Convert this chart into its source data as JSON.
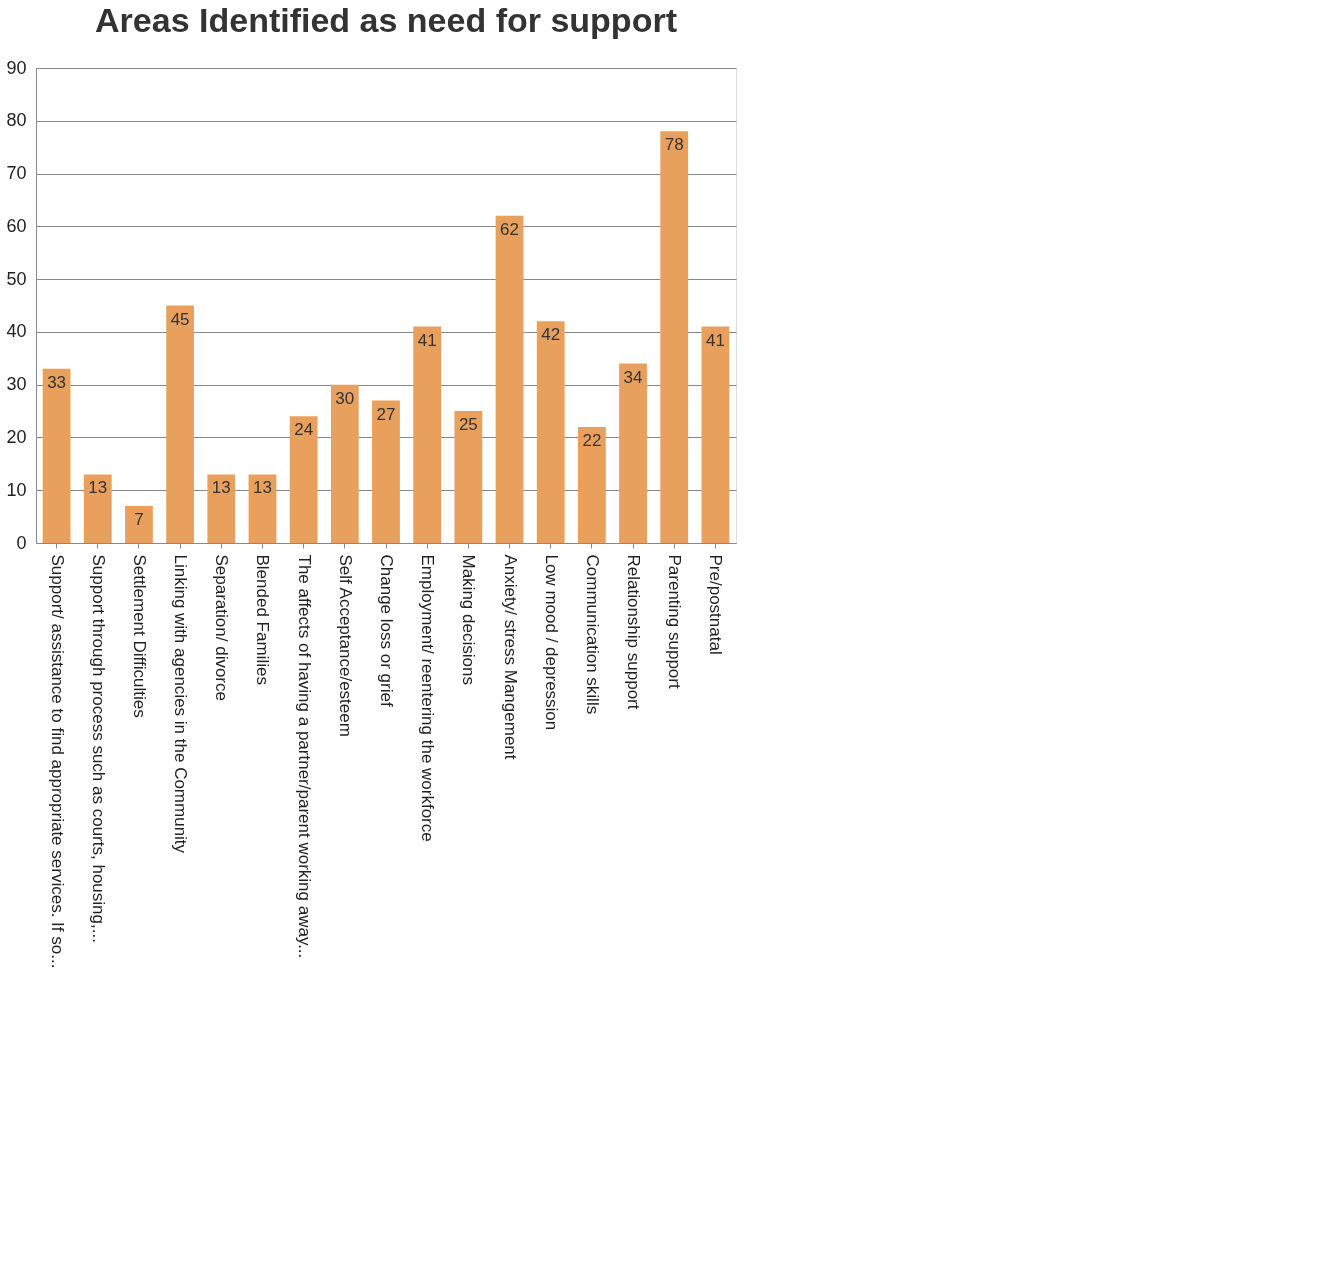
{
  "chart_data": {
    "type": "bar",
    "title": "Areas Identified as need for support",
    "categories": [
      "Support/ assistance to find appropriate services. If so...",
      "Support through process such as courts, housing,...",
      "Settlement Difficulties",
      "Linking with agencies in the Community",
      "Separation/ divorce",
      "Blended Families",
      "The affects of having a partner/parent working away...",
      "Self Acceptance/esteem",
      "Change loss or grief",
      "Employment/ reentering the workforce",
      "Making decisions",
      "Anxiety/ stress Mangement",
      "Low mood / depression",
      "Communication skills",
      "Relationship support",
      "Parenting support",
      "Pre/postnatal"
    ],
    "values": [
      33,
      13,
      7,
      45,
      13,
      13,
      24,
      30,
      27,
      41,
      25,
      62,
      42,
      22,
      34,
      78,
      41
    ],
    "color": "#e8a05c",
    "ylim": [
      0,
      90
    ],
    "yticks": [
      0,
      10,
      20,
      30,
      40,
      50,
      60,
      70,
      80,
      90
    ],
    "grid": "y",
    "data_labels": true
  }
}
